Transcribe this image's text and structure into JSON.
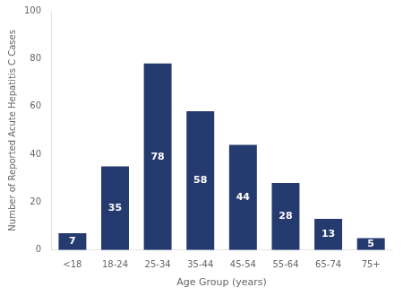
{
  "chart_data": {
    "type": "bar",
    "categories": [
      "<18",
      "18-24",
      "25-34",
      "35-44",
      "45-54",
      "55-64",
      "65-74",
      "75+"
    ],
    "values": [
      7,
      35,
      78,
      58,
      44,
      28,
      13,
      5
    ],
    "color": "#253a6e",
    "xlabel": "Age Group (years)",
    "ylabel": "Number of Reported Acute Hepatitis C Cases",
    "ylim": [
      0,
      100
    ],
    "yticks": [
      0,
      20,
      40,
      60,
      80,
      100
    ],
    "grid": false,
    "data_labels": true
  }
}
